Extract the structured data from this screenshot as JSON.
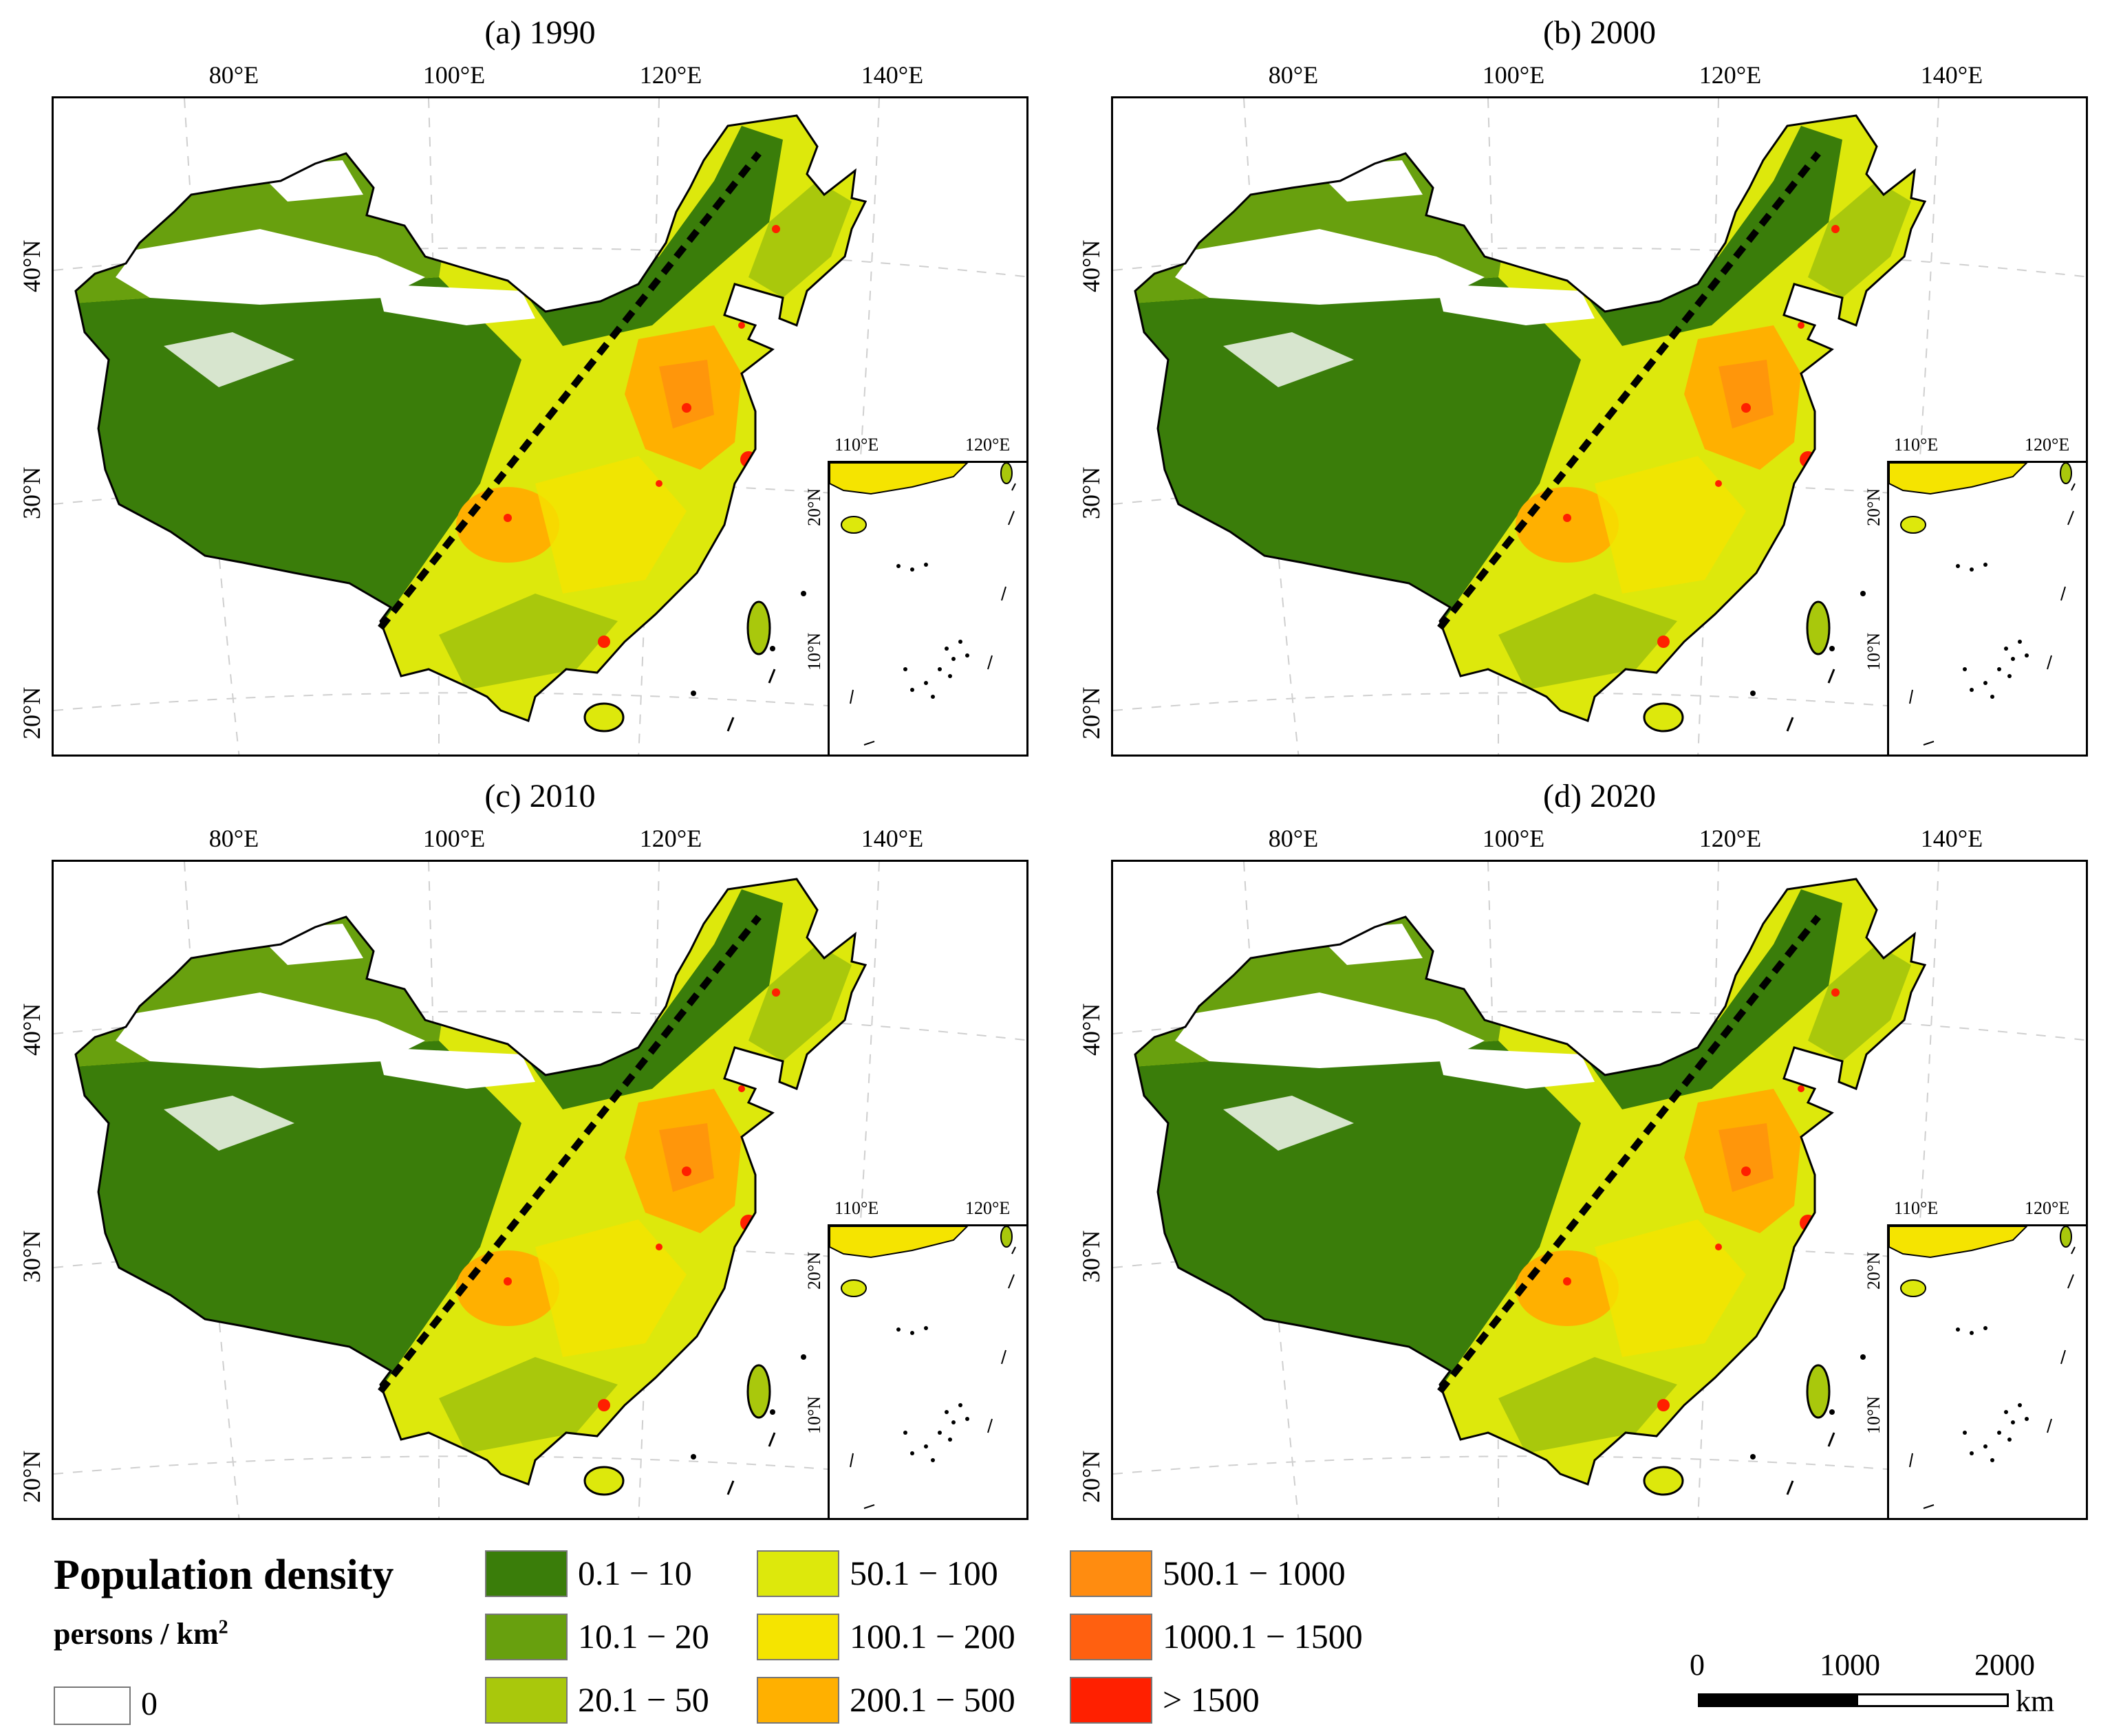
{
  "panels": [
    {
      "title": "(a) 1990"
    },
    {
      "title": "(b) 2000"
    },
    {
      "title": "(c) 2010"
    },
    {
      "title": "(d) 2020"
    }
  ],
  "axes": {
    "lon_labels": [
      "80°E",
      "100°E",
      "120°E",
      "140°E"
    ],
    "lat_labels": [
      "40°N",
      "30°N",
      "20°N"
    ],
    "inset_lon_labels": [
      "110°E",
      "120°E"
    ],
    "inset_lat_labels": [
      "20°N",
      "10°N"
    ]
  },
  "legend": {
    "title": "Population density",
    "unit": "persons / km",
    "unit_sup": "2",
    "zero_label": "0",
    "classes": [
      {
        "label": "0.1 − 10",
        "color": "#3a7d0a"
      },
      {
        "label": "10.1 − 20",
        "color": "#68a00e"
      },
      {
        "label": "20.1 − 50",
        "color": "#a9c80c"
      },
      {
        "label": "50.1 − 100",
        "color": "#dde80c"
      },
      {
        "label": "100.1 − 200",
        "color": "#f5e400"
      },
      {
        "label": "200.1 − 500",
        "color": "#ffb000"
      },
      {
        "label": "500.1 − 1000",
        "color": "#ff8c10"
      },
      {
        "label": "1000.1 − 1500",
        "color": "#ff6010"
      },
      {
        "label": "> 1500",
        "color": "#ff2000"
      }
    ]
  },
  "scale_bar": {
    "labels": [
      "0",
      "1000",
      "2000"
    ],
    "unit": "km"
  }
}
